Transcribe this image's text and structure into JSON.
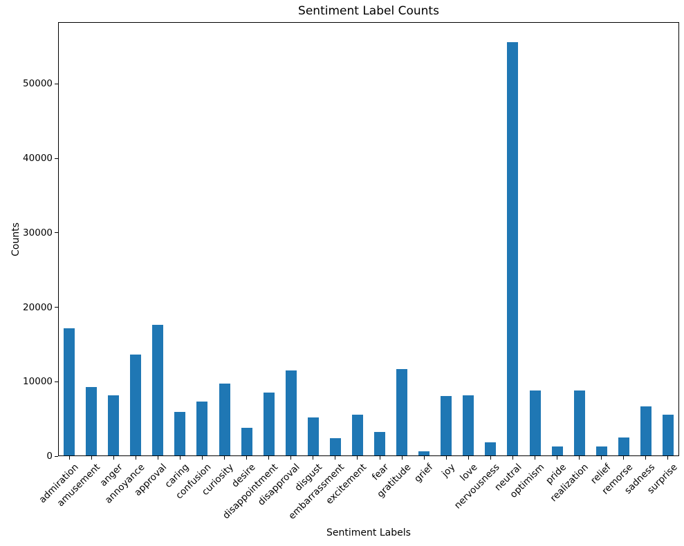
{
  "title": "Sentiment Label Counts",
  "chart_data": {
    "type": "bar",
    "title": "Sentiment Label Counts",
    "xlabel": "Sentiment Labels",
    "ylabel": "Counts",
    "bar_color": "#1f77b4",
    "axis_color": "#000000",
    "grid": false,
    "legend": null,
    "ylim": [
      0,
      58290
    ],
    "yticks": [
      0,
      10000,
      20000,
      30000,
      40000,
      50000
    ],
    "categories": [
      "admiration",
      "amusement",
      "anger",
      "annoyance",
      "approval",
      "caring",
      "confusion",
      "curiosity",
      "desire",
      "disappointment",
      "disapproval",
      "disgust",
      "embarrassment",
      "excitement",
      "fear",
      "gratitude",
      "grief",
      "joy",
      "love",
      "nervousness",
      "neutral",
      "optimism",
      "pride",
      "realization",
      "relief",
      "remorse",
      "sadness",
      "surprise"
    ],
    "values": [
      17110,
      9150,
      8080,
      13570,
      17550,
      5860,
      7240,
      9610,
      3680,
      8440,
      11410,
      5140,
      2360,
      5510,
      3130,
      11560,
      550,
      7950,
      8100,
      1780,
      55500,
      8690,
      1220,
      8720,
      1190,
      2390,
      6620,
      5480
    ]
  }
}
